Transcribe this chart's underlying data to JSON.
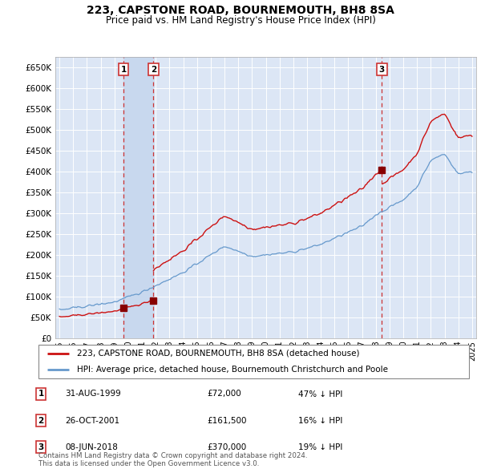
{
  "title": "223, CAPSTONE ROAD, BOURNEMOUTH, BH8 8SA",
  "subtitle": "Price paid vs. HM Land Registry's House Price Index (HPI)",
  "background_color": "#ffffff",
  "plot_bg_color": "#dce6f5",
  "grid_color": "#ffffff",
  "hpi_color": "#6699cc",
  "price_color": "#cc1111",
  "sale_marker_color": "#880000",
  "dashed_line_color": "#cc3333",
  "shaded_region_color": "#c8d8ee",
  "ylim": [
    0,
    675000
  ],
  "yticks": [
    0,
    50000,
    100000,
    150000,
    200000,
    250000,
    300000,
    350000,
    400000,
    450000,
    500000,
    550000,
    600000,
    650000
  ],
  "sales": [
    {
      "date_num": 4.667,
      "price": 72000,
      "label": "1",
      "date_str": "31-AUG-1999",
      "pct": "47% ↓ HPI"
    },
    {
      "date_num": 6.833,
      "price": 161500,
      "label": "2",
      "date_str": "26-OCT-2001",
      "pct": "16% ↓ HPI"
    },
    {
      "date_num": 23.44,
      "price": 370000,
      "label": "3",
      "date_str": "08-JUN-2018",
      "pct": "19% ↓ HPI"
    }
  ],
  "legend_address": "223, CAPSTONE ROAD, BOURNEMOUTH, BH8 8SA (detached house)",
  "legend_hpi": "HPI: Average price, detached house, Bournemouth Christchurch and Poole",
  "table_rows": [
    [
      "1",
      "31-AUG-1999",
      "£72,000",
      "47% ↓ HPI"
    ],
    [
      "2",
      "26-OCT-2001",
      "£161,500",
      "16% ↓ HPI"
    ],
    [
      "3",
      "08-JUN-2018",
      "£370,000",
      "19% ↓ HPI"
    ]
  ],
  "footnote": "Contains HM Land Registry data © Crown copyright and database right 2024.\nThis data is licensed under the Open Government Licence v3.0."
}
